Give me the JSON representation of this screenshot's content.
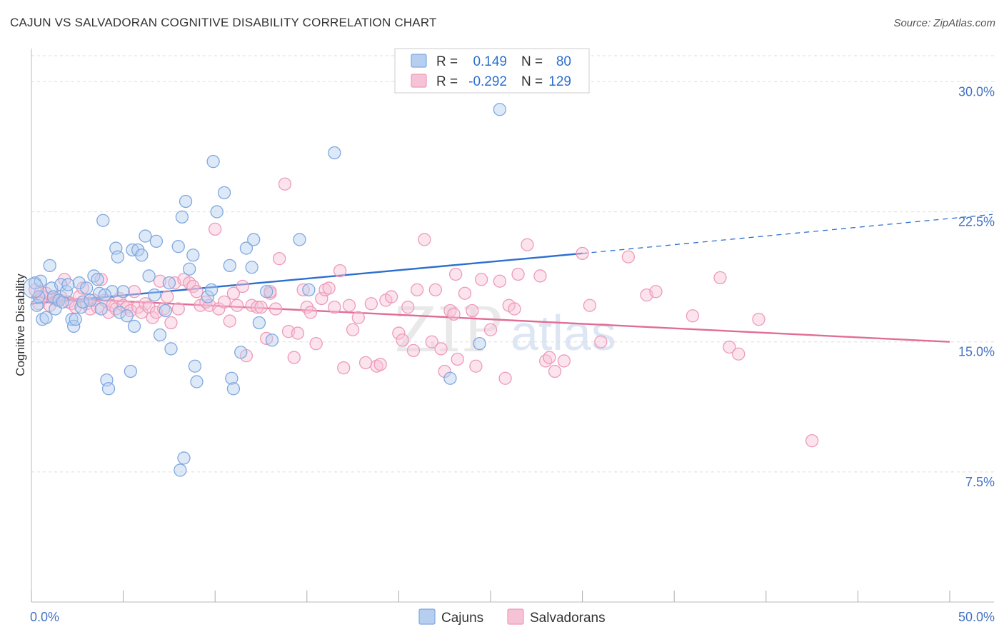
{
  "title": "CAJUN VS SALVADORAN COGNITIVE DISABILITY CORRELATION CHART",
  "source": "Source: ZipAtlas.com",
  "watermark": {
    "zip": "ZIP",
    "atlas": "atlas"
  },
  "colors": {
    "cajun": "#7fa8e0",
    "cajun_fill": "#b6cff0",
    "cajun_line": "#2c6fcf",
    "salvadoran": "#ee9ab8",
    "salvadoran_fill": "#f6c3d6",
    "salvadoran_line": "#e06d96",
    "tick_text": "#4472c4",
    "grid": "#dddddd"
  },
  "legend_top": {
    "rows": [
      {
        "r_label": "R =",
        "r_value": "0.149",
        "n_label": "N =",
        "n_value": "80"
      },
      {
        "r_label": "R =",
        "r_value": "-0.292",
        "n_label": "N =",
        "n_value": "129"
      }
    ]
  },
  "chart_data": {
    "type": "scatter",
    "title": "CAJUN VS SALVADORAN COGNITIVE DISABILITY CORRELATION CHART",
    "xlabel": "",
    "ylabel": "Cognitive Disability",
    "xlim": [
      0,
      50
    ],
    "ylim": [
      0,
      31.5
    ],
    "x_tick_labels": [
      {
        "value": 0,
        "label": "0.0%"
      },
      {
        "value": 50,
        "label": "50.0%"
      }
    ],
    "y_ticks": [
      {
        "value": 7.5,
        "label": "7.5%"
      },
      {
        "value": 15.0,
        "label": "15.0%"
      },
      {
        "value": 22.5,
        "label": "22.5%"
      },
      {
        "value": 30.0,
        "label": "30.0%"
      }
    ],
    "grid": true,
    "legend_position": "bottom",
    "series": [
      {
        "name": "Cajuns",
        "r": 0.149,
        "n": 80,
        "trend": {
          "x0": 0,
          "y0": 17.2,
          "x1": 30,
          "y1": 20.1,
          "dash_to_x": 50,
          "dash_to_y": 22.1
        },
        "points": [
          [
            0.2,
            18.4
          ],
          [
            0.3,
            17.1
          ],
          [
            0.4,
            17.6
          ],
          [
            0.5,
            18.5
          ],
          [
            0.6,
            16.3
          ],
          [
            0.8,
            16.4
          ],
          [
            1.0,
            19.4
          ],
          [
            1.1,
            18.1
          ],
          [
            1.2,
            17.6
          ],
          [
            1.3,
            16.9
          ],
          [
            1.5,
            17.4
          ],
          [
            1.6,
            18.3
          ],
          [
            1.7,
            17.3
          ],
          [
            1.9,
            17.9
          ],
          [
            2.0,
            18.3
          ],
          [
            2.2,
            16.3
          ],
          [
            2.3,
            15.9
          ],
          [
            2.4,
            16.3
          ],
          [
            2.6,
            18.4
          ],
          [
            2.7,
            17.0
          ],
          [
            2.8,
            17.3
          ],
          [
            3.0,
            18.1
          ],
          [
            3.2,
            17.4
          ],
          [
            3.4,
            18.8
          ],
          [
            3.6,
            18.6
          ],
          [
            3.7,
            17.8
          ],
          [
            3.8,
            16.9
          ],
          [
            3.9,
            22.0
          ],
          [
            4.1,
            12.8
          ],
          [
            4.2,
            12.3
          ],
          [
            4.4,
            17.9
          ],
          [
            4.6,
            20.4
          ],
          [
            4.7,
            19.9
          ],
          [
            4.8,
            16.7
          ],
          [
            5.0,
            17.9
          ],
          [
            5.2,
            16.5
          ],
          [
            5.4,
            13.3
          ],
          [
            5.5,
            20.3
          ],
          [
            5.6,
            15.9
          ],
          [
            5.8,
            20.3
          ],
          [
            6.0,
            20.0
          ],
          [
            6.2,
            21.1
          ],
          [
            6.4,
            18.8
          ],
          [
            6.8,
            20.8
          ],
          [
            7.0,
            15.4
          ],
          [
            7.3,
            16.8
          ],
          [
            7.5,
            18.4
          ],
          [
            7.6,
            14.6
          ],
          [
            8.0,
            20.5
          ],
          [
            8.1,
            7.6
          ],
          [
            8.2,
            22.2
          ],
          [
            8.3,
            8.3
          ],
          [
            8.4,
            23.1
          ],
          [
            8.6,
            19.2
          ],
          [
            8.8,
            20.0
          ],
          [
            8.9,
            13.6
          ],
          [
            9.0,
            12.7
          ],
          [
            9.6,
            17.6
          ],
          [
            9.8,
            18.0
          ],
          [
            9.9,
            25.4
          ],
          [
            10.1,
            22.5
          ],
          [
            10.5,
            23.6
          ],
          [
            10.8,
            19.4
          ],
          [
            10.9,
            12.9
          ],
          [
            11.0,
            12.3
          ],
          [
            11.4,
            14.4
          ],
          [
            11.7,
            20.4
          ],
          [
            12.0,
            19.3
          ],
          [
            12.1,
            20.9
          ],
          [
            12.4,
            16.1
          ],
          [
            12.8,
            17.9
          ],
          [
            13.1,
            15.1
          ],
          [
            14.6,
            20.9
          ],
          [
            15.1,
            18.0
          ],
          [
            16.5,
            25.9
          ],
          [
            22.8,
            12.9
          ],
          [
            24.4,
            14.9
          ],
          [
            25.5,
            28.4
          ],
          [
            4.0,
            17.7
          ],
          [
            6.7,
            17.7
          ]
        ]
      },
      {
        "name": "Salvadorans",
        "r": -0.292,
        "n": 129,
        "trend": {
          "x0": 0,
          "y0": 17.6,
          "x1": 50,
          "y1": 15.0
        },
        "points": [
          [
            0.2,
            18.0
          ],
          [
            0.4,
            17.2
          ],
          [
            0.5,
            17.9
          ],
          [
            0.6,
            17.6
          ],
          [
            0.8,
            17.8
          ],
          [
            1.0,
            17.1
          ],
          [
            1.2,
            17.5
          ],
          [
            1.4,
            17.4
          ],
          [
            1.6,
            17.6
          ],
          [
            1.8,
            18.6
          ],
          [
            2.0,
            17.3
          ],
          [
            2.2,
            17.2
          ],
          [
            2.4,
            17.0
          ],
          [
            2.6,
            17.6
          ],
          [
            2.8,
            18.1
          ],
          [
            3.0,
            17.2
          ],
          [
            3.2,
            16.9
          ],
          [
            3.4,
            17.4
          ],
          [
            3.6,
            17.0
          ],
          [
            3.8,
            18.6
          ],
          [
            4.0,
            17.4
          ],
          [
            4.2,
            16.7
          ],
          [
            4.4,
            17.1
          ],
          [
            4.6,
            16.9
          ],
          [
            4.8,
            17.5
          ],
          [
            5.0,
            17.1
          ],
          [
            5.2,
            17.0
          ],
          [
            5.4,
            16.8
          ],
          [
            5.6,
            17.9
          ],
          [
            5.8,
            17.0
          ],
          [
            6.0,
            16.7
          ],
          [
            6.2,
            17.2
          ],
          [
            6.4,
            17.0
          ],
          [
            6.6,
            16.4
          ],
          [
            6.8,
            16.7
          ],
          [
            7.0,
            18.5
          ],
          [
            7.2,
            16.9
          ],
          [
            7.4,
            17.6
          ],
          [
            7.6,
            16.1
          ],
          [
            7.8,
            18.4
          ],
          [
            8.0,
            16.9
          ],
          [
            8.3,
            18.6
          ],
          [
            8.6,
            18.4
          ],
          [
            8.8,
            18.2
          ],
          [
            9.0,
            17.9
          ],
          [
            9.2,
            17.1
          ],
          [
            9.5,
            17.3
          ],
          [
            9.7,
            17.1
          ],
          [
            10.0,
            21.5
          ],
          [
            10.2,
            16.9
          ],
          [
            10.5,
            17.3
          ],
          [
            10.8,
            16.2
          ],
          [
            11.0,
            17.8
          ],
          [
            11.2,
            17.1
          ],
          [
            11.5,
            18.2
          ],
          [
            11.7,
            14.2
          ],
          [
            12.0,
            17.1
          ],
          [
            12.3,
            17.0
          ],
          [
            12.5,
            17.0
          ],
          [
            12.8,
            15.2
          ],
          [
            13.0,
            17.8
          ],
          [
            13.3,
            16.9
          ],
          [
            13.5,
            19.8
          ],
          [
            13.8,
            24.1
          ],
          [
            14.0,
            15.6
          ],
          [
            14.3,
            14.1
          ],
          [
            14.5,
            15.5
          ],
          [
            14.8,
            18.0
          ],
          [
            15.0,
            17.0
          ],
          [
            15.2,
            16.7
          ],
          [
            15.5,
            14.9
          ],
          [
            15.8,
            17.5
          ],
          [
            16.0,
            18.0
          ],
          [
            16.2,
            18.1
          ],
          [
            16.5,
            17.0
          ],
          [
            16.8,
            19.1
          ],
          [
            17.0,
            13.5
          ],
          [
            17.3,
            17.1
          ],
          [
            17.5,
            15.7
          ],
          [
            17.8,
            16.4
          ],
          [
            18.2,
            13.8
          ],
          [
            18.5,
            17.2
          ],
          [
            18.8,
            13.6
          ],
          [
            19.0,
            13.7
          ],
          [
            19.3,
            17.4
          ],
          [
            19.6,
            17.6
          ],
          [
            20.0,
            15.5
          ],
          [
            20.2,
            15.1
          ],
          [
            20.5,
            17.0
          ],
          [
            20.8,
            14.5
          ],
          [
            21.0,
            18.0
          ],
          [
            21.4,
            20.9
          ],
          [
            21.8,
            15.0
          ],
          [
            22.0,
            18.0
          ],
          [
            22.3,
            14.6
          ],
          [
            22.5,
            13.3
          ],
          [
            22.8,
            16.8
          ],
          [
            23.0,
            16.6
          ],
          [
            23.2,
            14.0
          ],
          [
            23.6,
            17.8
          ],
          [
            24.0,
            16.8
          ],
          [
            24.2,
            13.6
          ],
          [
            24.5,
            18.6
          ],
          [
            25.0,
            15.7
          ],
          [
            25.5,
            18.5
          ],
          [
            25.8,
            12.9
          ],
          [
            26.0,
            17.1
          ],
          [
            26.3,
            16.9
          ],
          [
            26.5,
            18.9
          ],
          [
            27.0,
            20.6
          ],
          [
            27.7,
            18.8
          ],
          [
            28.0,
            13.9
          ],
          [
            28.2,
            14.1
          ],
          [
            28.5,
            13.3
          ],
          [
            29.0,
            13.9
          ],
          [
            30.0,
            20.1
          ],
          [
            30.4,
            17.1
          ],
          [
            31.0,
            15.0
          ],
          [
            32.5,
            19.9
          ],
          [
            33.5,
            17.7
          ],
          [
            34.0,
            17.9
          ],
          [
            36.0,
            16.5
          ],
          [
            37.5,
            18.7
          ],
          [
            38.0,
            14.7
          ],
          [
            38.5,
            14.3
          ],
          [
            39.6,
            16.3
          ],
          [
            42.5,
            9.3
          ],
          [
            23.1,
            18.9
          ],
          [
            13.0,
            17.9
          ]
        ]
      }
    ]
  }
}
